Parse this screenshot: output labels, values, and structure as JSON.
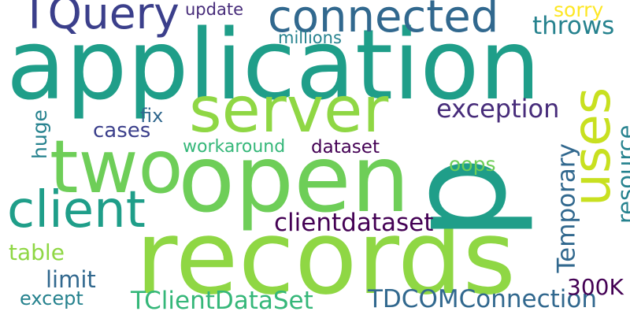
{
  "colors": {
    "background": "#ffffff",
    "dark_purple": "#440154",
    "purple": "#472c7a",
    "indigo": "#3b3f8b",
    "blue": "#31688e",
    "teal_blue": "#26828e",
    "teal": "#1f9e89",
    "green": "#35b779",
    "light_green": "#6ece58",
    "lime": "#8fd744",
    "yellow_green": "#c8e020",
    "yellow": "#fde725"
  },
  "words": [
    {
      "id": "application",
      "text": "application",
      "color": "#1f9e89"
    },
    {
      "id": "records",
      "text": "records",
      "color": "#8fd744"
    },
    {
      "id": "open",
      "text": "open",
      "color": "#6ece58"
    },
    {
      "id": "p",
      "text": "p",
      "color": "#1f9e89"
    },
    {
      "id": "two",
      "text": "two",
      "color": "#6ece58"
    },
    {
      "id": "server",
      "text": "server",
      "color": "#8fd744"
    },
    {
      "id": "client",
      "text": "client",
      "color": "#1f9e89"
    },
    {
      "id": "uses",
      "text": "uses",
      "color": "#c8e020"
    },
    {
      "id": "connected",
      "text": "connected",
      "color": "#31688e"
    },
    {
      "id": "tquery",
      "text": "TQuery",
      "color": "#3b3f8b"
    },
    {
      "id": "exception",
      "text": "exception",
      "color": "#472c7a"
    },
    {
      "id": "clientdataset",
      "text": "clientdataset",
      "color": "#440154"
    },
    {
      "id": "tclientdataset",
      "text": "TClientDataSet",
      "color": "#35b779"
    },
    {
      "id": "tdcomconnection",
      "text": "TDCOMConnection",
      "color": "#31688e"
    },
    {
      "id": "temporary",
      "text": "Temporary",
      "color": "#31688e"
    },
    {
      "id": "throws",
      "text": "throws",
      "color": "#26828e"
    },
    {
      "id": "workaround",
      "text": "workaround",
      "color": "#35b779"
    },
    {
      "id": "dataset",
      "text": "dataset",
      "color": "#440154"
    },
    {
      "id": "cases",
      "text": "cases",
      "color": "#3b3f8b"
    },
    {
      "id": "fix",
      "text": "fix",
      "color": "#31688e"
    },
    {
      "id": "table",
      "text": "table",
      "color": "#8fd744"
    },
    {
      "id": "limit",
      "text": "limit",
      "color": "#31688e"
    },
    {
      "id": "except",
      "text": "except",
      "color": "#26828e"
    },
    {
      "id": "oops",
      "text": "oops",
      "color": "#6ece58"
    },
    {
      "id": "resource",
      "text": "resource",
      "color": "#26828e"
    },
    {
      "id": "300k",
      "text": "300K",
      "color": "#440154"
    },
    {
      "id": "huge",
      "text": "huge",
      "color": "#26828e"
    },
    {
      "id": "sorry",
      "text": "sorry",
      "color": "#fde725"
    },
    {
      "id": "update",
      "text": "update",
      "color": "#472c7a"
    },
    {
      "id": "millions",
      "text": "millions",
      "color": "#26828e"
    }
  ]
}
